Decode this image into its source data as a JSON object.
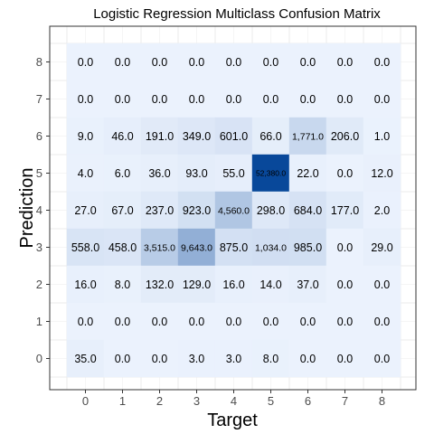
{
  "chart_data": {
    "type": "heatmap",
    "title": "Logistic Regression Multiclass Confusion Matrix",
    "xlabel": "Target",
    "ylabel": "Prediction",
    "x_categories": [
      "0",
      "1",
      "2",
      "3",
      "4",
      "5",
      "6",
      "7",
      "8"
    ],
    "y_categories": [
      "0",
      "1",
      "2",
      "3",
      "4",
      "5",
      "6",
      "7",
      "8"
    ],
    "rows": [
      {
        "prediction": "8",
        "labels": [
          "0.0",
          "0.0",
          "0.0",
          "0.0",
          "0.0",
          "0.0",
          "0.0",
          "0.0",
          "0.0"
        ],
        "values": [
          0,
          0,
          0,
          0,
          0,
          0,
          0,
          0,
          0
        ]
      },
      {
        "prediction": "7",
        "labels": [
          "0.0",
          "0.0",
          "0.0",
          "0.0",
          "0.0",
          "0.0",
          "0.0",
          "0.0",
          "0.0"
        ],
        "values": [
          0,
          0,
          0,
          0,
          0,
          0,
          0,
          0,
          0
        ]
      },
      {
        "prediction": "6",
        "labels": [
          "9.0",
          "46.0",
          "191.0",
          "349.0",
          "601.0",
          "66.0",
          "1,771.0",
          "206.0",
          "1.0"
        ],
        "values": [
          9,
          46,
          191,
          349,
          601,
          66,
          1771,
          206,
          1
        ]
      },
      {
        "prediction": "5",
        "labels": [
          "4.0",
          "6.0",
          "36.0",
          "93.0",
          "55.0",
          "52,380.0",
          "22.0",
          "0.0",
          "12.0"
        ],
        "values": [
          4,
          6,
          36,
          93,
          55,
          52380,
          22,
          0,
          12
        ]
      },
      {
        "prediction": "4",
        "labels": [
          "27.0",
          "67.0",
          "237.0",
          "923.0",
          "4,560.0",
          "298.0",
          "684.0",
          "177.0",
          "2.0"
        ],
        "values": [
          27,
          67,
          237,
          923,
          4560,
          298,
          684,
          177,
          2
        ]
      },
      {
        "prediction": "3",
        "labels": [
          "558.0",
          "458.0",
          "3,515.0",
          "9,643.0",
          "875.0",
          "1,034.0",
          "985.0",
          "0.0",
          "29.0"
        ],
        "values": [
          558,
          458,
          3515,
          9643,
          875,
          1034,
          985,
          0,
          29
        ]
      },
      {
        "prediction": "2",
        "labels": [
          "16.0",
          "8.0",
          "132.0",
          "129.0",
          "16.0",
          "14.0",
          "37.0",
          "0.0",
          "0.0"
        ],
        "values": [
          16,
          8,
          132,
          129,
          16,
          14,
          37,
          0,
          0
        ]
      },
      {
        "prediction": "1",
        "labels": [
          "0.0",
          "0.0",
          "0.0",
          "0.0",
          "0.0",
          "0.0",
          "0.0",
          "0.0",
          "0.0"
        ],
        "values": [
          0,
          0,
          0,
          0,
          0,
          0,
          0,
          0,
          0
        ]
      },
      {
        "prediction": "0",
        "labels": [
          "35.0",
          "0.0",
          "0.0",
          "3.0",
          "3.0",
          "8.0",
          "0.0",
          "0.0",
          "0.0"
        ],
        "values": [
          35,
          0,
          0,
          3,
          3,
          8,
          0,
          0,
          0
        ]
      }
    ],
    "color_low": "#ebf2fd",
    "color_high": "#08489a",
    "grid": true,
    "legend": "none"
  }
}
